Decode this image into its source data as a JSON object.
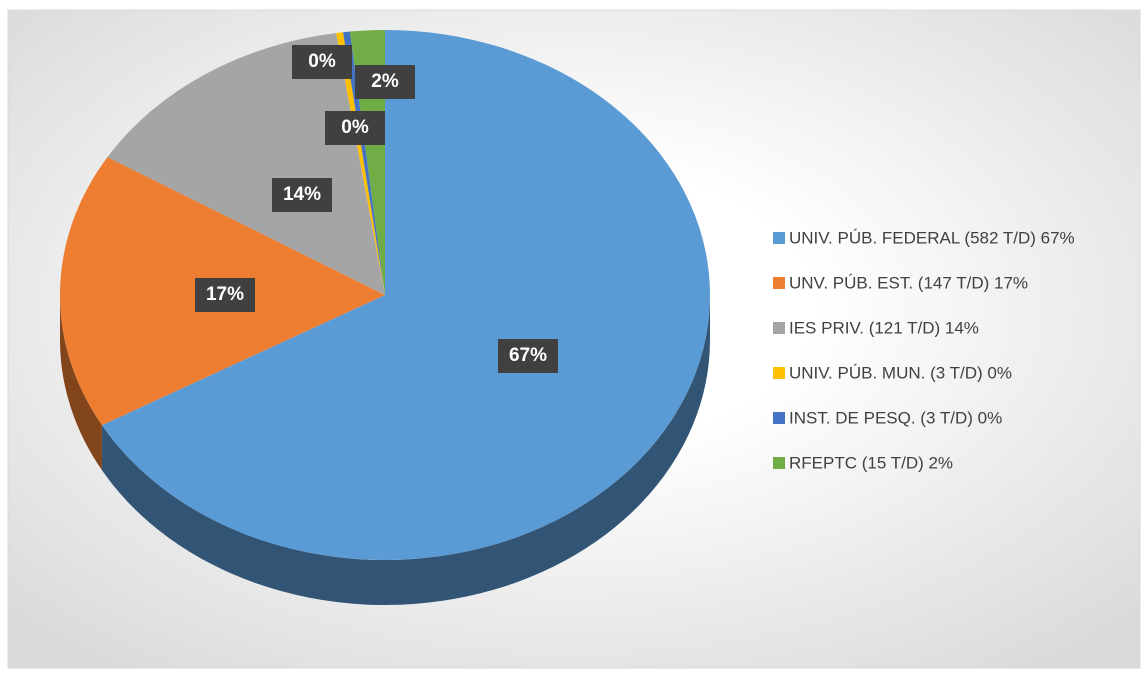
{
  "chart_data": {
    "type": "pie",
    "categories": [
      "UNIV. PÚB. FEDERAL (582 T/D) 67%",
      "UNV. PÚB. EST. (147 T/D) 17%",
      "IES PRIV. (121 T/D) 14%",
      "UNIV. PÚB. MUN. (3 T/D) 0%",
      "INST. DE PESQ. (3 T/D) 0%",
      "RFEPTC (15 T/D) 2%"
    ],
    "values": [
      66.82,
      16.88,
      13.89,
      0.34,
      0.34,
      1.72
    ],
    "value_labels": [
      "67%",
      "17%",
      "14%",
      "0%",
      "0%",
      "2%"
    ],
    "colors": [
      "#5b9bd5",
      "#ed7d31",
      "#a5a5a5",
      "#ffc000",
      "#4472c4",
      "#70ad47"
    ],
    "legend": "right"
  }
}
